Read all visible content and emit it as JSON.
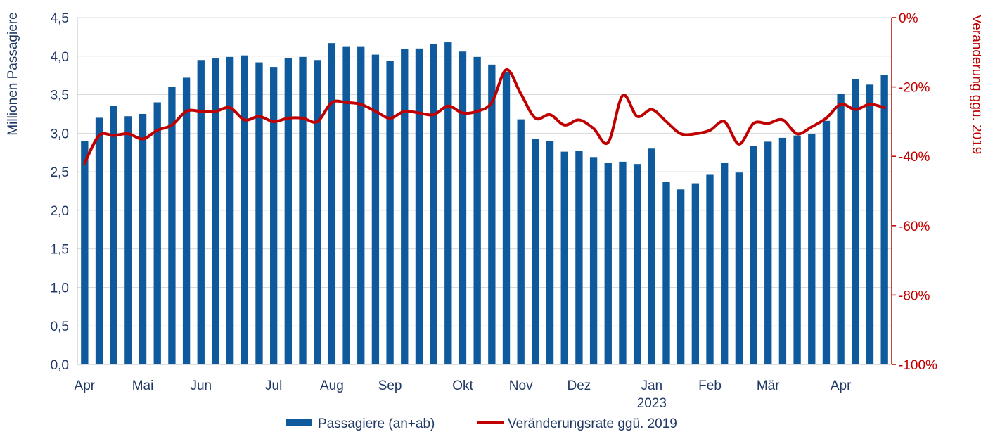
{
  "colors": {
    "bar": "#0f5a9c",
    "line": "#c00000",
    "grid": "#d9d9d9",
    "axis_left": "#1f3864",
    "axis_right": "#c00000"
  },
  "chart_data": {
    "type": "bar",
    "grid": true,
    "legend_position": "bottom",
    "title": "",
    "ylabel": "Millionen Passagiere",
    "y2label": "Veränderung ggü. 2019",
    "ylim": [
      0,
      4.5
    ],
    "y2lim": [
      -100,
      0
    ],
    "yticks": [
      "0,0",
      "0,5",
      "1,0",
      "1,5",
      "2,0",
      "2,5",
      "3,0",
      "3,5",
      "4,0",
      "4,5"
    ],
    "y2ticks": [
      "-100%",
      "-80%",
      "-60%",
      "-40%",
      "-20%",
      "0%"
    ],
    "x_month_labels": [
      {
        "label": "Apr",
        "week": 0
      },
      {
        "label": "Mai",
        "week": 4
      },
      {
        "label": "Jun",
        "week": 8
      },
      {
        "label": "Jul",
        "week": 13
      },
      {
        "label": "Aug",
        "week": 17
      },
      {
        "label": "Sep",
        "week": 21
      },
      {
        "label": "Okt",
        "week": 26
      },
      {
        "label": "Nov",
        "week": 30
      },
      {
        "label": "Dez",
        "week": 34
      },
      {
        "label": "Jan",
        "week": 39
      },
      {
        "label": "Feb",
        "week": 43
      },
      {
        "label": "Mär",
        "week": 47
      },
      {
        "label": "Apr",
        "week": 52
      }
    ],
    "x_year_label": {
      "label": "2023",
      "week": 39
    },
    "series": [
      {
        "name": "Passagiere (an+ab)",
        "type": "bar",
        "axis": "left",
        "values": [
          2.9,
          3.2,
          3.35,
          3.22,
          3.25,
          3.4,
          3.6,
          3.72,
          3.95,
          3.97,
          3.99,
          4.01,
          3.92,
          3.86,
          3.98,
          3.99,
          3.95,
          4.17,
          4.12,
          4.12,
          4.02,
          3.94,
          4.09,
          4.1,
          4.16,
          4.18,
          4.06,
          3.99,
          3.89,
          3.8,
          3.18,
          2.93,
          2.9,
          2.76,
          2.77,
          2.69,
          2.62,
          2.63,
          2.6,
          2.8,
          2.37,
          2.27,
          2.35,
          2.46,
          2.62,
          2.49,
          2.83,
          2.89,
          2.94,
          2.97,
          2.99,
          3.16,
          3.51,
          3.7,
          3.63,
          3.76
        ]
      },
      {
        "name": "Veränderungsrate ggü. 2019",
        "type": "line",
        "axis": "right",
        "values": [
          -42,
          -34,
          -34,
          -33.5,
          -35,
          -32.5,
          -31,
          -27,
          -27,
          -27,
          -26,
          -29.5,
          -28.5,
          -30,
          -29,
          -29,
          -30,
          -24.5,
          -24.5,
          -25,
          -27,
          -29,
          -27,
          -27.5,
          -28,
          -25.5,
          -27.5,
          -27,
          -24.5,
          -15,
          -22,
          -29,
          -28,
          -31,
          -29.5,
          -32,
          -36,
          -22.5,
          -28.5,
          -26.5,
          -30,
          -33.5,
          -33.5,
          -32.5,
          -30,
          -36.5,
          -30.5,
          -30.5,
          -29.5,
          -33.5,
          -31.5,
          -29,
          -25,
          -26.5,
          -25,
          -26
        ]
      }
    ]
  }
}
